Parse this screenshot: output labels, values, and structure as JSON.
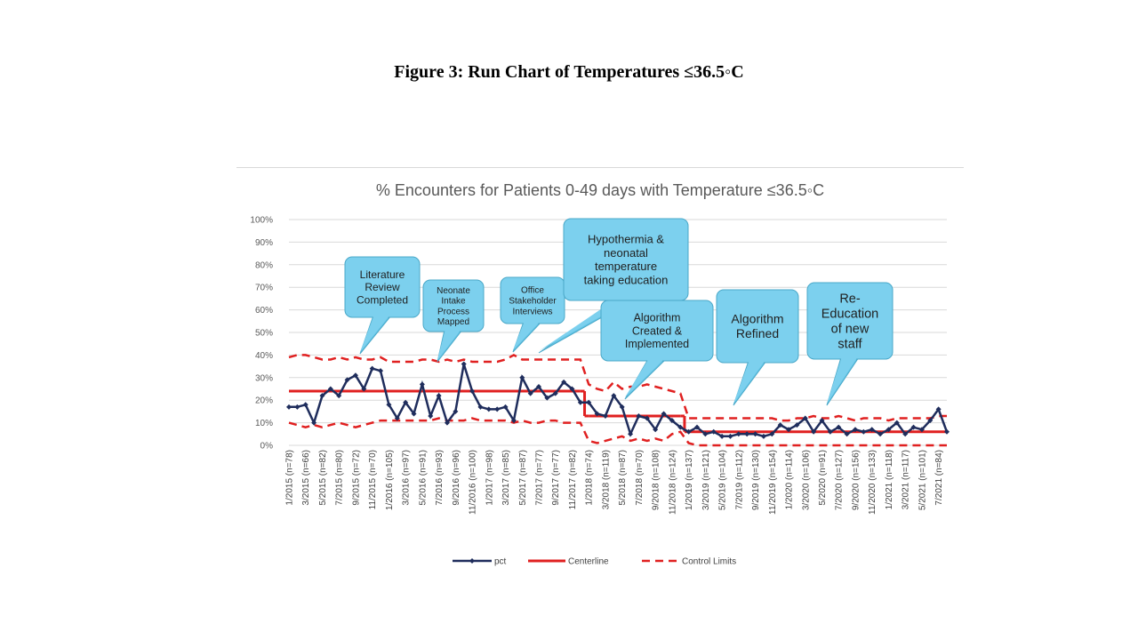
{
  "figure_title": "Figure 3: Run Chart of Temperatures ≤36.5◦C",
  "chart_data": {
    "type": "line",
    "title": "% Encounters for Patients 0-49 days with Temperature ≤36.5◦C",
    "xlabel": "",
    "ylabel": "",
    "ylim": [
      0,
      100
    ],
    "y_ticks": [
      "0%",
      "10%",
      "20%",
      "30%",
      "40%",
      "50%",
      "60%",
      "70%",
      "80%",
      "90%",
      "100%"
    ],
    "x_tick_labels": [
      "1/2015 (n=78)",
      "3/2015 (n=66)",
      "5/2015 (n=82)",
      "7/2015 (n=80)",
      "9/2015 (n=72)",
      "11/2015 (n=70)",
      "1/2016 (n=105)",
      "3/2016 (n=97)",
      "5/2016 (n=91)",
      "7/2016 (n=93)",
      "9/2016 (n=96)",
      "11/2016 (n=100)",
      "1/2017 (n=98)",
      "3/2017 (n=85)",
      "5/2017 (n=87)",
      "7/2017 (n=77)",
      "9/2017 (n=77)",
      "11/2017 (n=82)",
      "1/2018 (n=74)",
      "3/2018 (n=119)",
      "5/2018 (n=87)",
      "7/2018 (n=70)",
      "9/2018 (n=108)",
      "11/2018 (n=124)",
      "1/2019 (n=137)",
      "3/2019 (n=121)",
      "5/2019 (n=104)",
      "7/2019 (n=112)",
      "9/2019 (n=130)",
      "11/2019 (n=154)",
      "1/2020 (n=114)",
      "3/2020 (n=106)",
      "5/2020 (n=91)",
      "7/2020 (n=127)",
      "9/2020 (n=156)",
      "11/2020 (n=133)",
      "1/2021 (n=118)",
      "3/2021 (n=117)",
      "5/2021 (n=101)",
      "7/2021 (n=84)"
    ],
    "series": [
      {
        "name": "pct",
        "color": "#1f2d5c",
        "values": [
          17,
          17,
          18,
          10,
          22,
          25,
          22,
          29,
          31,
          25,
          34,
          33,
          18,
          12,
          19,
          14,
          27,
          13,
          22,
          10,
          15,
          36,
          24,
          17,
          16,
          16,
          17,
          11,
          30,
          23,
          26,
          21,
          23,
          28,
          25,
          19,
          19,
          14,
          13,
          22,
          17,
          5,
          13,
          12,
          7,
          14,
          11,
          8,
          6,
          8,
          5,
          6,
          4,
          4,
          5,
          5,
          5,
          4,
          5,
          9,
          7,
          9,
          12,
          6,
          11,
          6,
          8,
          5,
          7,
          6,
          7,
          5,
          7,
          10,
          5,
          8,
          7,
          11,
          16,
          6
        ]
      },
      {
        "name": "Centerline",
        "color": "#e02020",
        "segments": [
          {
            "from": 0,
            "to": 35,
            "value": 24
          },
          {
            "from": 36,
            "to": 47,
            "value": 13
          },
          {
            "from": 48,
            "to": 79,
            "value": 6
          }
        ]
      },
      {
        "name": "Control Limits",
        "color": "#e02020",
        "upper": [
          39,
          40,
          40,
          39,
          38,
          38,
          39,
          38,
          39,
          38,
          38,
          39,
          37,
          37,
          37,
          37,
          38,
          38,
          37,
          38,
          37,
          38,
          37,
          37,
          37,
          37,
          38,
          40,
          38,
          38,
          38,
          38,
          38,
          38,
          38,
          38,
          27,
          25,
          24,
          28,
          25,
          26,
          26,
          27,
          26,
          25,
          24,
          23,
          12,
          12,
          12,
          12,
          12,
          12,
          12,
          12,
          12,
          12,
          12,
          11,
          11,
          12,
          12,
          13,
          12,
          12,
          13,
          12,
          11,
          12,
          12,
          12,
          11,
          12,
          12,
          12,
          12,
          12,
          13,
          13
        ],
        "lower": [
          10,
          9,
          8,
          9,
          8,
          9,
          10,
          9,
          8,
          9,
          10,
          11,
          11,
          11,
          11,
          11,
          11,
          11,
          12,
          11,
          11,
          11,
          12,
          11,
          11,
          11,
          11,
          10,
          11,
          10,
          10,
          11,
          11,
          10,
          10,
          10,
          2,
          1,
          2,
          3,
          4,
          2,
          3,
          2,
          3,
          2,
          5,
          6,
          1,
          0,
          0,
          0,
          0,
          0,
          0,
          0,
          0,
          0,
          0,
          0,
          0,
          0,
          0,
          0,
          0,
          0,
          0,
          0,
          0,
          0,
          0,
          0,
          0,
          0,
          0,
          0,
          0,
          0,
          0,
          0
        ]
      }
    ],
    "annotations": [
      {
        "lines": [
          "Literature",
          "Review",
          "Completed"
        ],
        "point_index": 10
      },
      {
        "lines": [
          "Neonate",
          "Intake",
          "Process",
          "Mapped"
        ],
        "point_index": 21
      },
      {
        "lines": [
          "Office",
          "Stakeholder",
          "Interviews"
        ],
        "point_index": 32
      },
      {
        "lines": [
          "Hypothermia &",
          "neonatal",
          "temperature",
          "taking education"
        ],
        "point_index": 35
      },
      {
        "lines": [
          "Algorithm",
          "Created &",
          "Implemented"
        ],
        "point_index": 44
      },
      {
        "lines": [
          "Algorithm",
          "Refined"
        ],
        "point_index": 56
      },
      {
        "lines": [
          "Re-",
          "Education",
          "of new",
          "staff"
        ],
        "point_index": 67
      }
    ],
    "legend": [
      "pct",
      "Centerline",
      "Control Limits"
    ],
    "legend_position": "bottom",
    "grid": true
  }
}
